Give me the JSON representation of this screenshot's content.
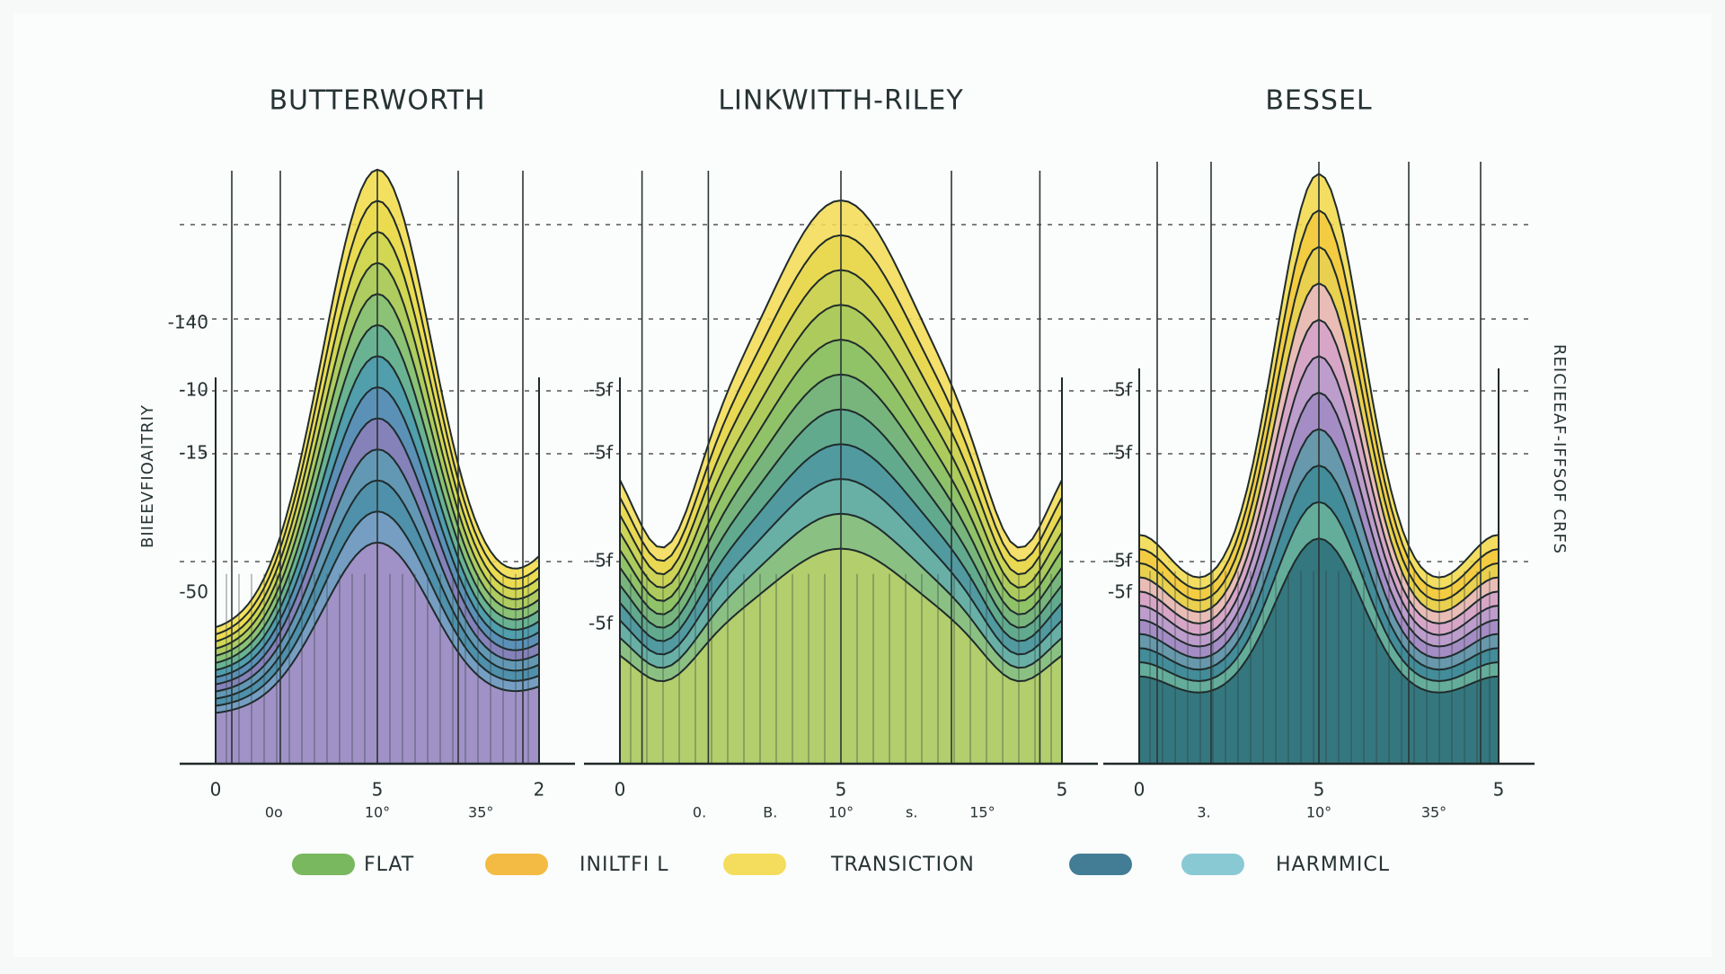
{
  "y_axis_left": "BIIEEVFIOAITRIY",
  "y_axis_right": "REICIEEAF-IFFSOF CRFS",
  "panels": [
    {
      "title": "BUTTERWORTH",
      "y_ticks": [
        "-140",
        "-10",
        "-15",
        "-50"
      ],
      "x_ticks": [
        "0",
        "5",
        "2"
      ],
      "x_sublabels": [
        "0o",
        "10°",
        "35°"
      ]
    },
    {
      "title": "LINKWITTH-RILEY",
      "y_ticks": [
        "-5f",
        "-5f",
        "-5f",
        "-5f"
      ],
      "x_ticks": [
        "0",
        "5",
        "5"
      ],
      "x_sublabels": [
        "0.",
        "B.",
        "10°",
        "s.",
        "15°"
      ]
    },
    {
      "title": "BESSEL",
      "y_ticks": [
        "-5f",
        "-5f",
        "-5f",
        "-5f"
      ],
      "x_ticks": [
        "0",
        "5",
        "5"
      ],
      "x_sublabels": [
        "3.",
        "10°",
        "35°"
      ]
    }
  ],
  "legend": [
    "FLAT",
    "INILTFI L",
    "TRANSICTION",
    "HARMMICL"
  ]
}
